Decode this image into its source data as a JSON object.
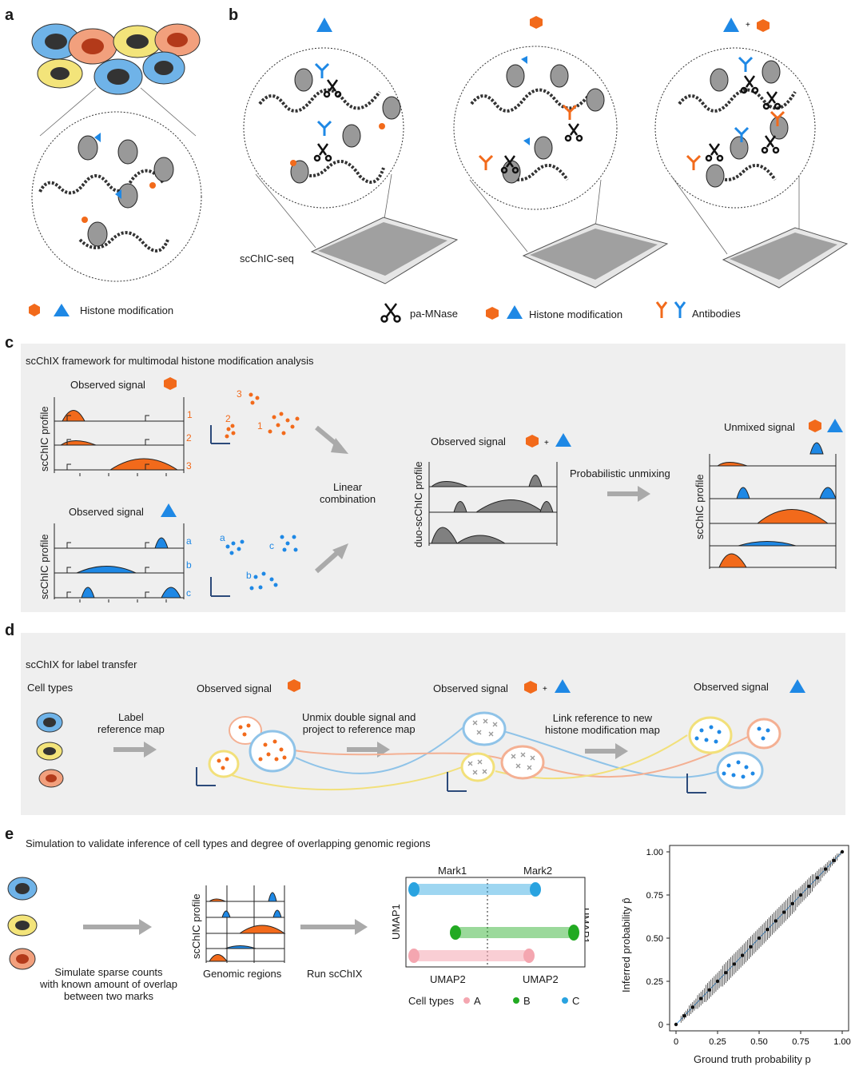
{
  "colors": {
    "orange": "#f26a1b",
    "blue": "#1e88e5",
    "gray": "#808080",
    "cellA": "#f4a6b0",
    "cellB": "#22aa22",
    "cellC": "#29a3e0",
    "panelBg": "#efefef"
  },
  "panel_a": {
    "letter": "a",
    "legend": "Histone modification"
  },
  "panel_b": {
    "letter": "b",
    "plate_label": "scChIC-seq",
    "legend": {
      "mnase": "pa-MNase",
      "histone": "Histone modification",
      "antibodies": "Antibodies"
    }
  },
  "panel_c": {
    "letter": "c",
    "title": "scChIX framework for multimodal histone modification analysis",
    "observed_signal": "Observed signal",
    "y_profile": "scChIC profile",
    "duo_profile": "duo-scChIC profile",
    "orange_rows": [
      "1",
      "2",
      "3"
    ],
    "blue_rows": [
      "a",
      "b",
      "c"
    ],
    "linear": "Linear\ncombination",
    "prob_unmix": "Probabilistic unmixing",
    "unmixed": "Unmixed signal"
  },
  "panel_d": {
    "letter": "d",
    "title": "scChIX for label transfer",
    "cell_types": "Cell types",
    "label_ref": "Label\nreference map",
    "observed_signal": "Observed signal",
    "unmix_project": "Unmix double signal and\nproject to reference map",
    "link_ref": "Link reference to new\nhistone modification map"
  },
  "panel_e": {
    "letter": "e",
    "title": "Simulation to validate inference of cell types and degree of overlapping genomic regions",
    "simulate": "Simulate sparse counts\nwith known amount of overlap\nbetween two marks",
    "y_profile": "scChIC profile",
    "genomic": "Genomic regions",
    "run": "Run scChIX",
    "mark1": "Mark1",
    "mark2": "Mark2",
    "umap1": "UMAP1",
    "umap2": "UMAP2",
    "cell_types_label": "Cell types",
    "cell_types": [
      {
        "name": "A"
      },
      {
        "name": "B"
      },
      {
        "name": "C"
      }
    ]
  },
  "chart_data": {
    "type": "scatter",
    "xlabel": "Ground truth probability p",
    "ylabel": "Inferred probability p̂",
    "xlim": [
      0,
      1
    ],
    "ylim": [
      0,
      1
    ],
    "x_ticks": [
      "0",
      "0.25",
      "0.50",
      "0.75",
      "1.00"
    ],
    "y_ticks": [
      "0",
      "0.25",
      "0.50",
      "0.75",
      "1.00"
    ],
    "x": [
      0.05,
      0.1,
      0.15,
      0.2,
      0.25,
      0.3,
      0.35,
      0.4,
      0.45,
      0.5,
      0.55,
      0.6,
      0.65,
      0.7,
      0.75,
      0.8,
      0.85,
      0.9,
      0.95,
      1.0
    ],
    "y": [
      0.05,
      0.1,
      0.15,
      0.2,
      0.25,
      0.3,
      0.35,
      0.4,
      0.45,
      0.5,
      0.55,
      0.6,
      0.65,
      0.7,
      0.75,
      0.8,
      0.85,
      0.9,
      0.95,
      1.0
    ],
    "error": [
      0.02,
      0.03,
      0.04,
      0.05,
      0.05,
      0.06,
      0.06,
      0.06,
      0.06,
      0.06,
      0.06,
      0.06,
      0.06,
      0.06,
      0.05,
      0.05,
      0.04,
      0.03,
      0.02,
      0.01
    ]
  }
}
